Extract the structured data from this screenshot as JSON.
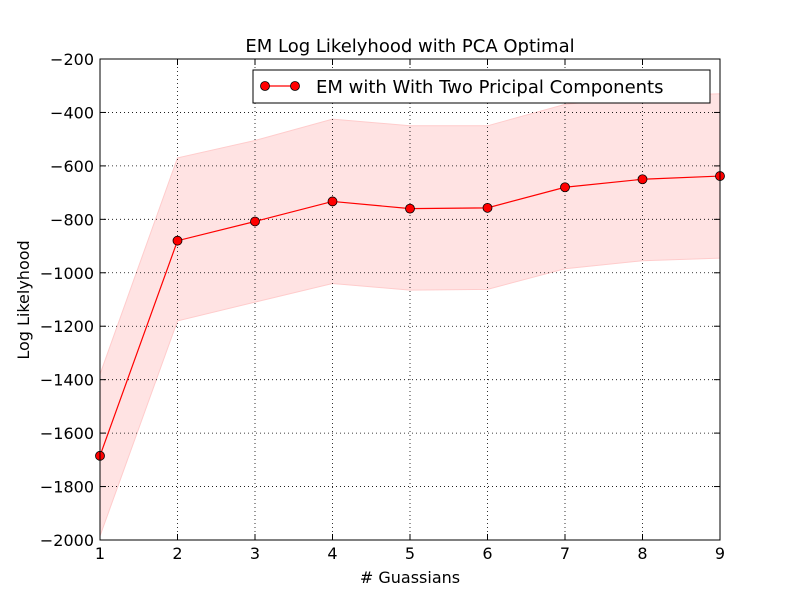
{
  "chart_data": {
    "type": "line",
    "title": "EM Log Likelyhood with PCA Optimal",
    "xlabel": "# Guassians",
    "ylabel": "Log Likelyhood",
    "xlim": [
      1,
      9
    ],
    "ylim": [
      -2000,
      -200
    ],
    "x_ticks": [
      1,
      2,
      3,
      4,
      5,
      6,
      7,
      8,
      9
    ],
    "y_ticks": [
      -2000,
      -1800,
      -1600,
      -1400,
      -1200,
      -1000,
      -800,
      -600,
      -400,
      -200
    ],
    "grid": true,
    "legend_position": "top-right",
    "series": [
      {
        "name": "EM with With Two Pricipal Components",
        "color": "#ff0000",
        "band_color": "#ffcccc",
        "x": [
          1,
          2,
          3,
          4,
          5,
          6,
          7,
          8,
          9
        ],
        "y": [
          -1685,
          -880,
          -808,
          -733,
          -760,
          -757,
          -680,
          -650,
          -638
        ],
        "upper": [
          -1380,
          -570,
          -505,
          -425,
          -450,
          -450,
          -370,
          -340,
          -330
        ],
        "lower": [
          -1985,
          -1180,
          -1110,
          -1040,
          -1065,
          -1062,
          -985,
          -955,
          -945
        ]
      }
    ]
  }
}
